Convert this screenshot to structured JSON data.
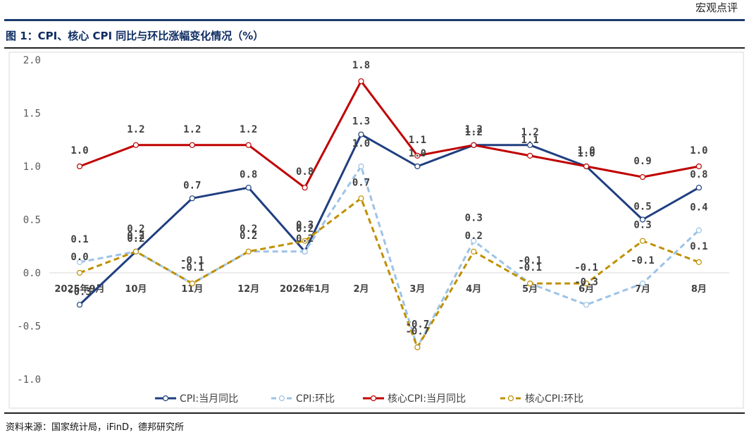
{
  "brand": "宏观点评",
  "figure_title": "图 1：CPI、核心 CPI 同比与环比涨幅变化情况（%）",
  "source": "资料来源：国家统计局，iFinD，德邦研究所",
  "chart_data": {
    "type": "line",
    "categories": [
      "2025年9月",
      "10月",
      "11月",
      "12月",
      "2026年1月",
      "2月",
      "3月",
      "4月",
      "5月",
      "6月",
      "7月",
      "8月"
    ],
    "ylim": [
      -1.0,
      2.0
    ],
    "yticks": [
      "2.0",
      "1.5",
      "1.0",
      "0.5",
      "0.0",
      "-0.5",
      "-1.0"
    ],
    "grid": false,
    "legend_position": "bottom",
    "series": [
      {
        "name": "CPI:当月同比",
        "values": [
          -0.3,
          0.2,
          0.7,
          0.8,
          0.2,
          1.3,
          1.0,
          1.2,
          1.2,
          1.0,
          0.5,
          0.8
        ],
        "labels": [
          "-0.3",
          "0.2",
          "0.7",
          "0.8",
          "0.2",
          "1.3",
          "1.0",
          "1.2",
          "1.2",
          "1.0",
          "0.5",
          "0.8"
        ],
        "color": "#1f3f7f",
        "dashed": false
      },
      {
        "name": "CPI:环比",
        "values": [
          0.1,
          0.2,
          -0.1,
          0.2,
          0.2,
          1.0,
          -0.7,
          0.3,
          -0.1,
          -0.3,
          -0.1,
          0.4
        ],
        "labels": [
          "0.1",
          "0.2",
          "-0.1",
          "0.2",
          "0.2",
          "1.0",
          "-0.7",
          "0.3",
          "-0.1",
          "-0.3",
          "-0.1",
          "0.4"
        ],
        "color": "#9dc3e6",
        "dashed": true
      },
      {
        "name": "核心CPI:当月同比",
        "values": [
          1.0,
          1.2,
          1.2,
          1.2,
          0.8,
          1.8,
          1.1,
          1.2,
          1.1,
          1.0,
          0.9,
          1.0
        ],
        "labels": [
          "1.0",
          "1.2",
          "1.2",
          "1.2",
          "0.8",
          "1.8",
          "1.1",
          "1.2",
          "1.1",
          "1.0",
          "0.9",
          "1.0"
        ],
        "color": "#c00000",
        "dashed": false
      },
      {
        "name": "核心CPI:环比",
        "values": [
          0.0,
          0.2,
          -0.1,
          0.2,
          0.3,
          0.7,
          -0.7,
          0.2,
          -0.1,
          -0.1,
          0.3,
          0.1
        ],
        "labels": [
          "0.0",
          "0.2",
          "-0.1",
          "0.2",
          "0.3",
          "0.7",
          "-0.7",
          "0.2",
          "-0.1",
          "-0.1",
          "0.3",
          "0.1"
        ],
        "color": "#bf9000",
        "dashed": true
      }
    ]
  }
}
